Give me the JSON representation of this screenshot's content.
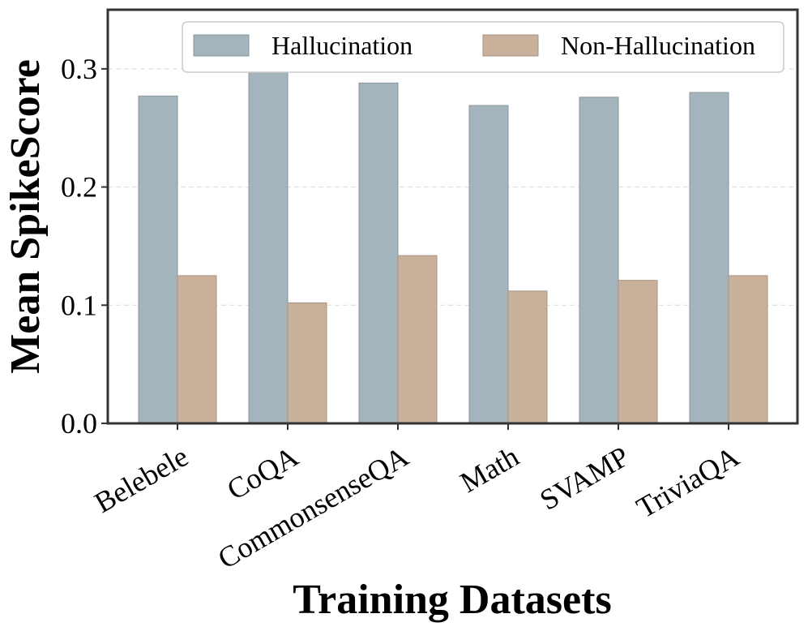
{
  "chart_data": {
    "type": "bar",
    "title": "",
    "xlabel": "Training Datasets",
    "ylabel": "Mean SpikeScore",
    "categories": [
      "Belebele",
      "CoQA",
      "CommonsenseQA",
      "Math",
      "SVAMP",
      "TriviaQA"
    ],
    "series": [
      {
        "name": "Hallucination",
        "color": "#a3b4bc",
        "values": [
          0.277,
          0.297,
          0.288,
          0.269,
          0.276,
          0.28
        ]
      },
      {
        "name": "Non-Hallucination",
        "color": "#c9b09b",
        "values": [
          0.125,
          0.102,
          0.142,
          0.112,
          0.121,
          0.125
        ]
      }
    ],
    "ylim": [
      0,
      0.35
    ],
    "yticks": [
      "0.0",
      "0.1",
      "0.2",
      "0.3"
    ],
    "grid": true,
    "legend_position": "top-right"
  }
}
